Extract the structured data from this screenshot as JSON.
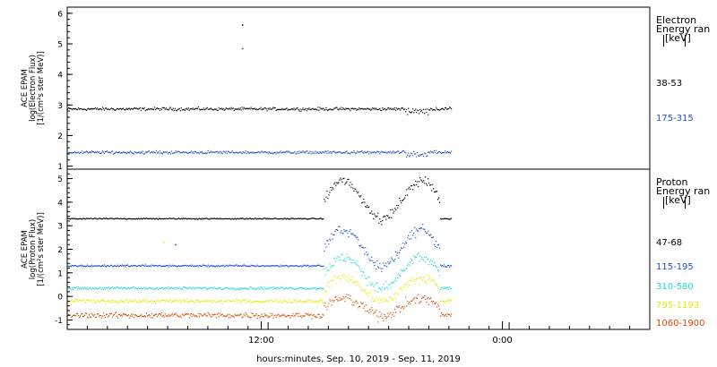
{
  "chart_data": [
    {
      "type": "scatter",
      "panel": "electron",
      "ylabel_lines": [
        "ACE EPAM",
        "log(Electron Flux)",
        "[1/(cm²s ster MeV)]"
      ],
      "ylim": [
        0.9,
        6.2
      ],
      "yticks": [
        1,
        2,
        3,
        4,
        5,
        6
      ],
      "legend_lines": [
        "Electron",
        "Energy ran",
        "[keV]"
      ],
      "series": [
        {
          "name": "38-53",
          "color": "#000000",
          "base": 2.87,
          "noise": 0.06,
          "spikes": [
            [
              0.3,
              5.62
            ]
          ]
        },
        {
          "name": "175-315",
          "color": "#1f4ec8",
          "base": 1.45,
          "noise": 0.06,
          "spikes": [
            [
              0.3,
              4.85
            ]
          ]
        }
      ]
    },
    {
      "type": "scatter",
      "panel": "proton",
      "ylabel_lines": [
        "ACE EPAM",
        "log(Proton Flux)",
        "[1/(cm²s ster MeV)]"
      ],
      "ylim": [
        -1.4,
        5.4
      ],
      "yticks": [
        -1,
        0,
        1,
        2,
        3,
        4,
        5
      ],
      "legend_lines": [
        "Proton",
        "Energy ran",
        "[keV]"
      ],
      "series": [
        {
          "name": "47-68",
          "color": "#000000",
          "base": 3.3,
          "noise": 0.03,
          "spikes": []
        },
        {
          "name": "115-195",
          "color": "#1f4ec8",
          "base": 1.3,
          "noise": 0.05,
          "spikes": [
            [
              0.185,
              2.2
            ]
          ]
        },
        {
          "name": "310-580",
          "color": "#1fd8d8",
          "base": 0.35,
          "noise": 0.07,
          "spikes": []
        },
        {
          "name": "795-1193",
          "color": "#e8e800",
          "base": -0.2,
          "noise": 0.1,
          "spikes": [
            [
              0.165,
              2.3
            ]
          ]
        },
        {
          "name": "1060-1900",
          "color": "#d04a06",
          "base": -0.8,
          "noise": 0.14,
          "spikes": []
        }
      ]
    }
  ],
  "x_axis": {
    "xlabel": "hours:minutes, Sep. 10, 2019 - Sep. 11, 2019",
    "tick_labels": [
      {
        "label": "12:00",
        "frac": 0.333
      },
      {
        "label": "0:00",
        "frac": 0.747
      }
    ],
    "data_end_frac": 0.66,
    "event_start_frac": 0.44
  }
}
